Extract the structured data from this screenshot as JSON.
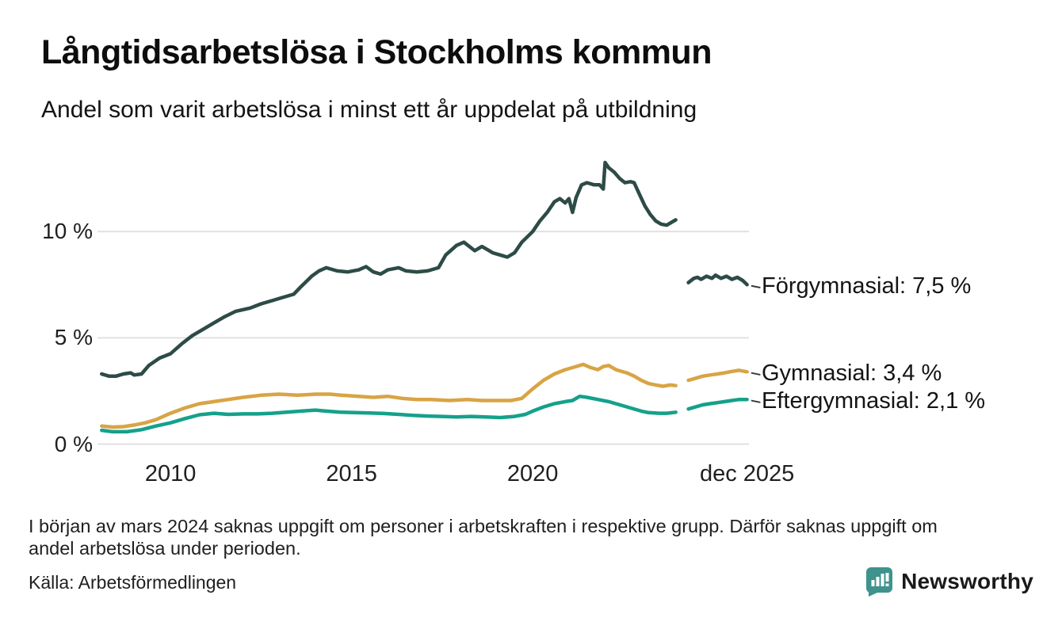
{
  "footnote": {
    "line1": "I början av mars 2024 saknas uppgift om personer i arbetskraften i respektive grupp. Därför saknas uppgift om",
    "line2": "andel arbetslösa under perioden."
  },
  "source": "Källa: Arbetsförmedlingen",
  "branding": {
    "name": "Newsworthy",
    "color": "#3f938c",
    "icon": "newsworthy-speech-bubble-barchart"
  },
  "chart_data": {
    "type": "line",
    "title": "Långtidsarbetslösa i Stockholms kommun",
    "subtitle": "Andel som varit arbetslösa i minst ett år uppdelat på utbildning",
    "xlabel": "",
    "ylabel": "",
    "xlim": [
      2008.05,
      2025.95
    ],
    "ylim": [
      0,
      14
    ],
    "grid": true,
    "grid_color": "#e1e1e1",
    "legend_position": "right-of-line-end",
    "gap_note": "series interrupted around mars 2024 (missing labour-force data)",
    "yticks": [
      {
        "v": 0,
        "label": "0 %"
      },
      {
        "v": 5,
        "label": "5 %"
      },
      {
        "v": 10,
        "label": "10 %"
      }
    ],
    "xticks": [
      {
        "v": 2010,
        "label": "2010"
      },
      {
        "v": 2015,
        "label": "2015"
      },
      {
        "v": 2020,
        "label": "2020"
      },
      {
        "v": 2025.92,
        "label": "dec 2025"
      }
    ],
    "series": [
      {
        "name": "Förgymnasial",
        "label": "Förgymnasial: 7,5 %",
        "end_value": "7,5 %",
        "color": "#2d4b47",
        "segments": [
          [
            [
              2008.1,
              3.3
            ],
            [
              2008.3,
              3.2
            ],
            [
              2008.5,
              3.2
            ],
            [
              2008.7,
              3.3
            ],
            [
              2008.9,
              3.35
            ],
            [
              2009.0,
              3.25
            ],
            [
              2009.2,
              3.3
            ],
            [
              2009.4,
              3.7
            ],
            [
              2009.7,
              4.05
            ],
            [
              2010.0,
              4.25
            ],
            [
              2010.3,
              4.7
            ],
            [
              2010.6,
              5.1
            ],
            [
              2010.9,
              5.4
            ],
            [
              2011.2,
              5.7
            ],
            [
              2011.5,
              6.0
            ],
            [
              2011.8,
              6.25
            ],
            [
              2012.2,
              6.4
            ],
            [
              2012.5,
              6.6
            ],
            [
              2012.8,
              6.75
            ],
            [
              2013.1,
              6.9
            ],
            [
              2013.4,
              7.05
            ],
            [
              2013.6,
              7.4
            ],
            [
              2013.9,
              7.9
            ],
            [
              2014.1,
              8.15
            ],
            [
              2014.3,
              8.3
            ],
            [
              2014.6,
              8.15
            ],
            [
              2014.9,
              8.1
            ],
            [
              2015.2,
              8.2
            ],
            [
              2015.4,
              8.35
            ],
            [
              2015.6,
              8.1
            ],
            [
              2015.8,
              8.0
            ],
            [
              2016.0,
              8.2
            ],
            [
              2016.3,
              8.3
            ],
            [
              2016.5,
              8.15
            ],
            [
              2016.8,
              8.1
            ],
            [
              2017.1,
              8.15
            ],
            [
              2017.4,
              8.3
            ],
            [
              2017.6,
              8.9
            ],
            [
              2017.9,
              9.35
            ],
            [
              2018.1,
              9.5
            ],
            [
              2018.4,
              9.1
            ],
            [
              2018.6,
              9.3
            ],
            [
              2018.9,
              9.0
            ],
            [
              2019.1,
              8.9
            ],
            [
              2019.3,
              8.8
            ],
            [
              2019.5,
              9.0
            ],
            [
              2019.7,
              9.5
            ],
            [
              2020.0,
              10.0
            ],
            [
              2020.2,
              10.5
            ],
            [
              2020.4,
              10.9
            ],
            [
              2020.6,
              11.4
            ],
            [
              2020.75,
              11.55
            ],
            [
              2020.9,
              11.35
            ],
            [
              2021.0,
              11.55
            ],
            [
              2021.1,
              10.9
            ],
            [
              2021.2,
              11.6
            ],
            [
              2021.35,
              12.2
            ],
            [
              2021.5,
              12.3
            ],
            [
              2021.7,
              12.2
            ],
            [
              2021.85,
              12.2
            ],
            [
              2021.95,
              12.0
            ],
            [
              2022.0,
              13.25
            ],
            [
              2022.1,
              13.0
            ],
            [
              2022.25,
              12.8
            ],
            [
              2022.4,
              12.5
            ],
            [
              2022.55,
              12.3
            ],
            [
              2022.7,
              12.35
            ],
            [
              2022.8,
              12.3
            ],
            [
              2022.95,
              11.75
            ],
            [
              2023.1,
              11.2
            ],
            [
              2023.25,
              10.8
            ],
            [
              2023.4,
              10.5
            ],
            [
              2023.55,
              10.35
            ],
            [
              2023.7,
              10.3
            ],
            [
              2023.85,
              10.45
            ],
            [
              2023.95,
              10.55
            ]
          ],
          [
            [
              2024.3,
              7.6
            ],
            [
              2024.45,
              7.8
            ],
            [
              2024.55,
              7.85
            ],
            [
              2024.65,
              7.75
            ],
            [
              2024.8,
              7.9
            ],
            [
              2024.95,
              7.8
            ],
            [
              2025.05,
              7.95
            ],
            [
              2025.2,
              7.8
            ],
            [
              2025.35,
              7.9
            ],
            [
              2025.5,
              7.75
            ],
            [
              2025.65,
              7.85
            ],
            [
              2025.8,
              7.7
            ],
            [
              2025.92,
              7.5
            ]
          ]
        ]
      },
      {
        "name": "Gymnasial",
        "label": "Gymnasial: 3,4 %",
        "end_value": "3,4 %",
        "color": "#d8a445",
        "segments": [
          [
            [
              2008.1,
              0.85
            ],
            [
              2008.4,
              0.8
            ],
            [
              2008.7,
              0.82
            ],
            [
              2009.0,
              0.9
            ],
            [
              2009.3,
              1.0
            ],
            [
              2009.6,
              1.15
            ],
            [
              2010.0,
              1.45
            ],
            [
              2010.4,
              1.7
            ],
            [
              2010.8,
              1.9
            ],
            [
              2011.2,
              2.0
            ],
            [
              2011.6,
              2.1
            ],
            [
              2012.0,
              2.2
            ],
            [
              2012.5,
              2.3
            ],
            [
              2013.0,
              2.35
            ],
            [
              2013.5,
              2.3
            ],
            [
              2014.0,
              2.35
            ],
            [
              2014.4,
              2.35
            ],
            [
              2014.7,
              2.3
            ],
            [
              2015.2,
              2.25
            ],
            [
              2015.6,
              2.2
            ],
            [
              2016.0,
              2.25
            ],
            [
              2016.4,
              2.15
            ],
            [
              2016.8,
              2.1
            ],
            [
              2017.2,
              2.1
            ],
            [
              2017.7,
              2.05
            ],
            [
              2018.2,
              2.1
            ],
            [
              2018.6,
              2.05
            ],
            [
              2019.0,
              2.05
            ],
            [
              2019.4,
              2.05
            ],
            [
              2019.7,
              2.15
            ],
            [
              2020.0,
              2.6
            ],
            [
              2020.3,
              3.0
            ],
            [
              2020.6,
              3.3
            ],
            [
              2020.9,
              3.5
            ],
            [
              2021.2,
              3.65
            ],
            [
              2021.4,
              3.75
            ],
            [
              2021.6,
              3.6
            ],
            [
              2021.8,
              3.5
            ],
            [
              2021.95,
              3.65
            ],
            [
              2022.1,
              3.7
            ],
            [
              2022.3,
              3.5
            ],
            [
              2022.6,
              3.35
            ],
            [
              2022.8,
              3.2
            ],
            [
              2023.0,
              3.0
            ],
            [
              2023.2,
              2.85
            ],
            [
              2023.4,
              2.78
            ],
            [
              2023.6,
              2.72
            ],
            [
              2023.8,
              2.78
            ],
            [
              2023.95,
              2.75
            ]
          ],
          [
            [
              2024.3,
              3.0
            ],
            [
              2024.5,
              3.1
            ],
            [
              2024.7,
              3.2
            ],
            [
              2024.9,
              3.25
            ],
            [
              2025.1,
              3.3
            ],
            [
              2025.3,
              3.35
            ],
            [
              2025.5,
              3.42
            ],
            [
              2025.7,
              3.47
            ],
            [
              2025.92,
              3.4
            ]
          ]
        ]
      },
      {
        "name": "Eftergymnasial",
        "label": "Eftergymnasial: 2,1 %",
        "end_value": "2,1 %",
        "color": "#14a18b",
        "segments": [
          [
            [
              2008.1,
              0.65
            ],
            [
              2008.4,
              0.58
            ],
            [
              2008.8,
              0.58
            ],
            [
              2009.2,
              0.68
            ],
            [
              2009.6,
              0.85
            ],
            [
              2010.0,
              1.0
            ],
            [
              2010.4,
              1.2
            ],
            [
              2010.8,
              1.38
            ],
            [
              2011.2,
              1.45
            ],
            [
              2011.6,
              1.4
            ],
            [
              2012.0,
              1.42
            ],
            [
              2012.4,
              1.42
            ],
            [
              2012.8,
              1.45
            ],
            [
              2013.2,
              1.5
            ],
            [
              2013.6,
              1.55
            ],
            [
              2014.0,
              1.6
            ],
            [
              2014.3,
              1.55
            ],
            [
              2014.7,
              1.5
            ],
            [
              2015.1,
              1.48
            ],
            [
              2015.5,
              1.46
            ],
            [
              2015.9,
              1.44
            ],
            [
              2016.3,
              1.4
            ],
            [
              2016.7,
              1.35
            ],
            [
              2017.1,
              1.32
            ],
            [
              2017.5,
              1.3
            ],
            [
              2017.9,
              1.28
            ],
            [
              2018.3,
              1.3
            ],
            [
              2018.7,
              1.28
            ],
            [
              2019.1,
              1.25
            ],
            [
              2019.5,
              1.3
            ],
            [
              2019.8,
              1.4
            ],
            [
              2020.0,
              1.55
            ],
            [
              2020.3,
              1.75
            ],
            [
              2020.6,
              1.9
            ],
            [
              2020.9,
              2.0
            ],
            [
              2021.1,
              2.05
            ],
            [
              2021.3,
              2.25
            ],
            [
              2021.5,
              2.2
            ],
            [
              2021.8,
              2.1
            ],
            [
              2022.1,
              2.0
            ],
            [
              2022.4,
              1.85
            ],
            [
              2022.7,
              1.7
            ],
            [
              2023.0,
              1.55
            ],
            [
              2023.2,
              1.48
            ],
            [
              2023.5,
              1.45
            ],
            [
              2023.7,
              1.45
            ],
            [
              2023.95,
              1.5
            ]
          ],
          [
            [
              2024.3,
              1.65
            ],
            [
              2024.5,
              1.75
            ],
            [
              2024.7,
              1.85
            ],
            [
              2024.9,
              1.9
            ],
            [
              2025.1,
              1.95
            ],
            [
              2025.3,
              2.0
            ],
            [
              2025.5,
              2.05
            ],
            [
              2025.7,
              2.1
            ],
            [
              2025.92,
              2.1
            ]
          ]
        ]
      }
    ]
  }
}
